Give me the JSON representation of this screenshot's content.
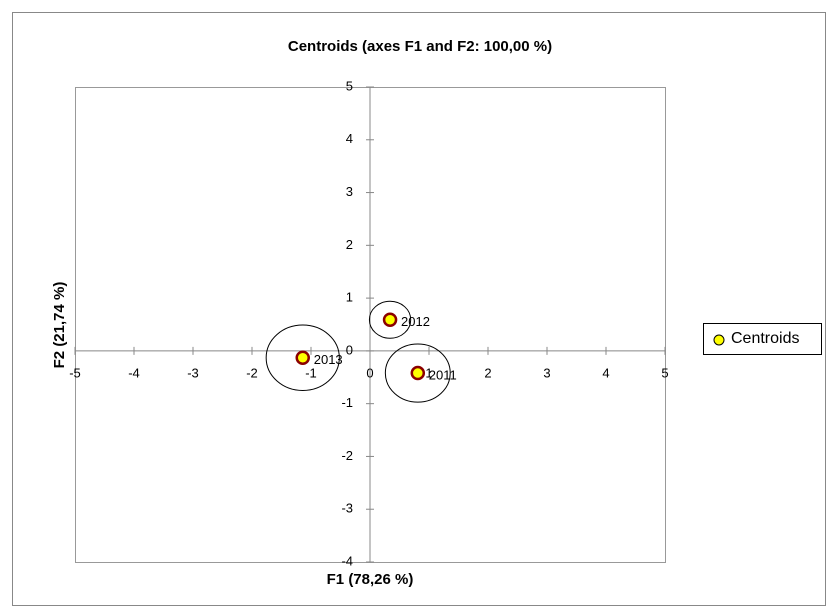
{
  "chart_data": {
    "type": "scatter",
    "title": "Centroids (axes F1 and F2: 100,00 %)",
    "x_label": "F1 (78,26 %)",
    "y_label": "F2 (21,74 %)",
    "xlim": [
      -5,
      5
    ],
    "xticks": [
      -5,
      -4,
      -3,
      -2,
      -1,
      0,
      1,
      2,
      3,
      4,
      5
    ],
    "ylim": [
      -4,
      5
    ],
    "yticks": [
      -4,
      -3,
      -2,
      -1,
      0,
      1,
      2,
      3,
      4,
      5
    ],
    "legend": "right",
    "series": [
      {
        "name": "Centroids",
        "color": "#ffff00",
        "edge_color": "#8b0000",
        "labels": [
          "2012",
          "2013",
          "2011"
        ],
        "x": [
          0.34,
          -1.14,
          0.81
        ],
        "values": [
          0.59,
          -0.13,
          -0.42
        ],
        "sizes": [
          0.35,
          0.62,
          0.55
        ]
      }
    ]
  }
}
